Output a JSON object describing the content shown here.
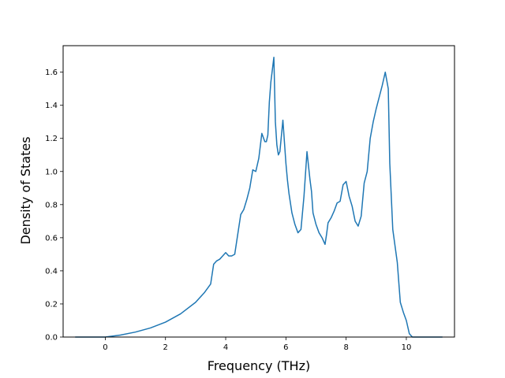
{
  "chart_data": {
    "type": "line",
    "title": "",
    "xlabel": "Frequency (THz)",
    "ylabel": "Density of States",
    "xlim": [
      -1.4,
      11.6
    ],
    "ylim": [
      0,
      1.76
    ],
    "x_ticks": [
      0,
      2,
      4,
      6,
      8,
      10
    ],
    "y_ticks": [
      0.0,
      0.2,
      0.4,
      0.6,
      0.8,
      1.0,
      1.2,
      1.4,
      1.6
    ],
    "x_tick_labels": [
      "0",
      "2",
      "4",
      "6",
      "8",
      "10"
    ],
    "y_tick_labels": [
      "0.0",
      "0.2",
      "0.4",
      "0.6",
      "0.8",
      "1.0",
      "1.2",
      "1.4",
      "1.6"
    ],
    "grid": false,
    "legend": "none",
    "series": [
      {
        "color": "#1f77b4",
        "x": [
          -1.0,
          -0.5,
          0.0,
          0.5,
          1.0,
          1.5,
          2.0,
          2.5,
          3.0,
          3.3,
          3.5,
          3.6,
          3.7,
          3.8,
          3.9,
          4.0,
          4.1,
          4.2,
          4.3,
          4.4,
          4.5,
          4.6,
          4.7,
          4.8,
          4.9,
          5.0,
          5.1,
          5.2,
          5.3,
          5.35,
          5.4,
          5.45,
          5.5,
          5.6,
          5.65,
          5.7,
          5.75,
          5.8,
          5.9,
          6.0,
          6.05,
          6.1,
          6.2,
          6.3,
          6.4,
          6.5,
          6.6,
          6.7,
          6.8,
          6.85,
          6.9,
          7.0,
          7.1,
          7.2,
          7.3,
          7.35,
          7.4,
          7.5,
          7.6,
          7.7,
          7.8,
          7.9,
          8.0,
          8.1,
          8.2,
          8.3,
          8.4,
          8.5,
          8.6,
          8.7,
          8.8,
          8.9,
          9.0,
          9.1,
          9.2,
          9.3,
          9.4,
          9.45,
          9.5,
          9.55,
          9.7,
          9.8,
          9.9,
          10.0,
          10.1,
          10.2,
          10.5,
          11.0,
          11.2
        ],
        "y": [
          0.0,
          0.0,
          0.0,
          0.012,
          0.03,
          0.055,
          0.09,
          0.14,
          0.21,
          0.27,
          0.32,
          0.44,
          0.46,
          0.47,
          0.49,
          0.51,
          0.49,
          0.49,
          0.5,
          0.62,
          0.74,
          0.77,
          0.83,
          0.9,
          1.01,
          1.0,
          1.08,
          1.23,
          1.18,
          1.18,
          1.22,
          1.42,
          1.54,
          1.69,
          1.3,
          1.16,
          1.1,
          1.12,
          1.31,
          1.05,
          0.95,
          0.87,
          0.75,
          0.68,
          0.63,
          0.65,
          0.85,
          1.12,
          0.95,
          0.88,
          0.75,
          0.68,
          0.63,
          0.6,
          0.56,
          0.62,
          0.69,
          0.72,
          0.76,
          0.81,
          0.82,
          0.92,
          0.94,
          0.85,
          0.79,
          0.7,
          0.67,
          0.73,
          0.93,
          1.0,
          1.2,
          1.3,
          1.38,
          1.45,
          1.52,
          1.6,
          1.5,
          1.05,
          0.85,
          0.65,
          0.45,
          0.21,
          0.15,
          0.1,
          0.02,
          0.0,
          0.0,
          0.0,
          0.0
        ]
      }
    ]
  }
}
